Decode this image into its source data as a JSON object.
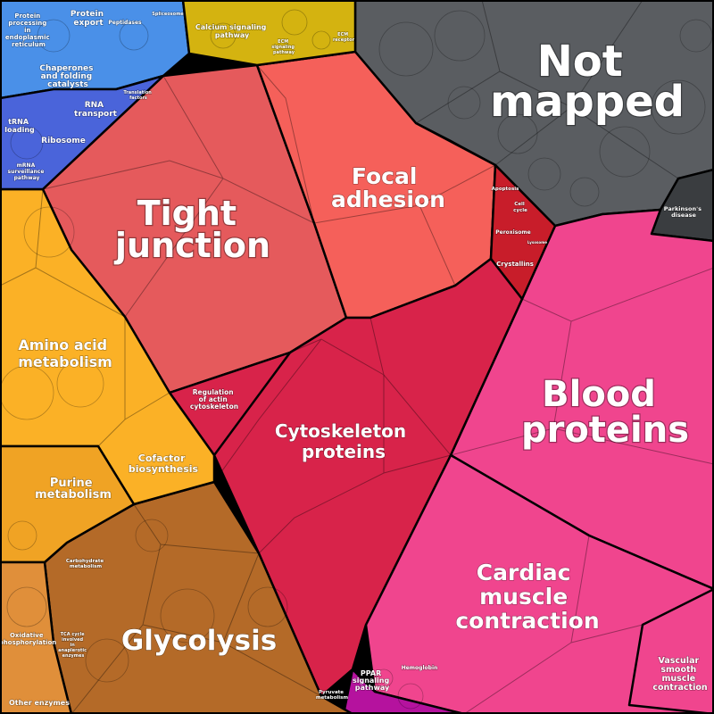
{
  "labels": {
    "not_mapped": [
      "Not",
      "mapped"
    ],
    "tight_junction": [
      "Tight",
      "junction"
    ],
    "focal_adhesion": [
      "Focal",
      "adhesion"
    ],
    "blood_proteins": [
      "Blood",
      "proteins"
    ],
    "cytoskeleton_proteins": [
      "Cytoskeleton",
      "proteins"
    ],
    "cardiac_muscle_contraction": [
      "Cardiac",
      "muscle",
      "contraction"
    ],
    "glycolysis": [
      "Glycolysis"
    ],
    "amino_acid_metabolism": [
      "Amino acid",
      "metabolism"
    ],
    "purine_metabolism": [
      "Purine",
      "metabolism"
    ],
    "cofactor_biosynthesis": [
      "Cofactor",
      "biosynthesis"
    ],
    "regulation_actin": [
      "Regulation",
      "of actin",
      "cytoskeleton"
    ],
    "calcium_signaling": [
      "Calcium signaling",
      "pathway"
    ],
    "protein_processing_er": [
      "Protein",
      "processing",
      "in",
      "endoplasmic",
      "reticulum"
    ],
    "protein_export": [
      "Protein",
      "export"
    ],
    "chaperones": [
      "Chaperones",
      "and folding",
      "catalysts"
    ],
    "rna_transport": [
      "RNA",
      "transport"
    ],
    "trna_loading": [
      "tRNA",
      "loading"
    ],
    "ribosome": [
      "Ribosome"
    ],
    "mrna_surveillance": [
      "mRNA",
      "surveillance",
      "pathway"
    ],
    "peptidases": [
      "Peptidases"
    ],
    "spliceosome": [
      "Spliceosome"
    ],
    "translation_factors": [
      "Translation",
      "factors"
    ],
    "apoptosis": [
      "Apoptosis"
    ],
    "cell_cycle": [
      "Cell",
      "cycle"
    ],
    "peroxisome": [
      "Peroxisome"
    ],
    "lysosome": [
      "Lysosome"
    ],
    "crystallins": [
      "Crystallins"
    ],
    "parkinsons": [
      "Parkinson's",
      "disease"
    ],
    "vascular_smooth": [
      "Vascular",
      "smooth",
      "muscle",
      "contraction"
    ],
    "ppar": [
      "PPAR",
      "signaling",
      "pathway"
    ],
    "hemoglobin": [
      "Hemoglobin"
    ],
    "carbohydrate_metabolism": [
      "Carbohydrate",
      "metabolism"
    ],
    "oxidative_phosphorylation": [
      "Oxidative",
      "phosphorylation"
    ],
    "tca_cycle": [
      "TCA cycle",
      "involved",
      "in",
      "anaplerotic",
      "enzymes"
    ],
    "pyruvate_metabolism": [
      "Pyruvate",
      "metabolism"
    ],
    "other_enzymes": [
      "Other enzymes"
    ],
    "ecm_receptor": [
      "ECM",
      "receptor"
    ],
    "ecm_signaling": [
      "ECM",
      "signaling",
      "pathway"
    ]
  },
  "colors": {
    "not_mapped": "#5a5d61",
    "tight_junction": "#e55a5c",
    "focal_adhesion": "#f5605a",
    "blood_proteins": "#f0458e",
    "cytoskeleton": "#d8234a",
    "crystallin_area": "#c81d2a",
    "glycolysis": "#b46a28",
    "amino_acid": "#fbb126",
    "purine": "#f0a324",
    "oxidative": "#e08f3a",
    "blue_top": "#4a90e8",
    "blue_mid": "#4a64da",
    "blue_low": "#4a58d0",
    "yellow": "#d4b310",
    "magenta": "#b5129e",
    "dark_gray": "#3a3d40"
  }
}
